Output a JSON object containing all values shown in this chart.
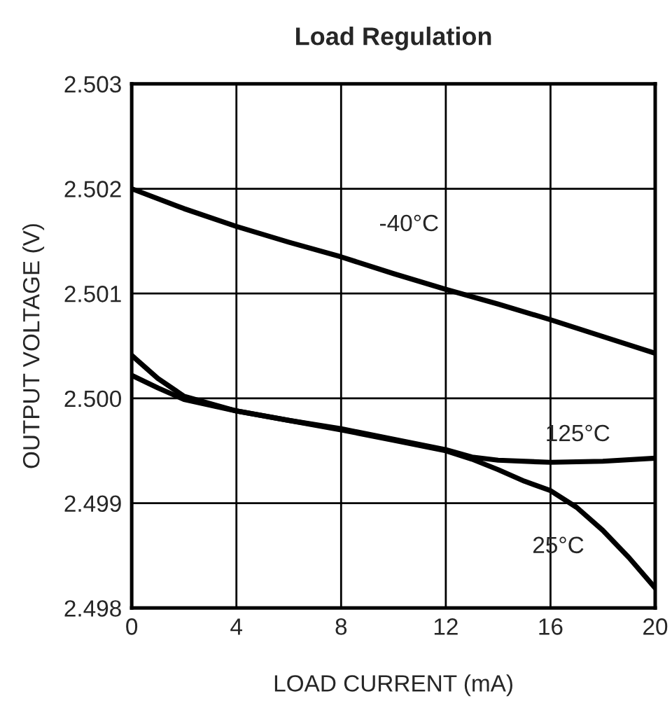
{
  "chart_data": {
    "type": "line",
    "title": "Load Regulation",
    "xlabel": "LOAD CURRENT (mA)",
    "ylabel": "OUTPUT VOLTAGE (V)",
    "series": [
      {
        "name": "-40°C",
        "color": "#000000",
        "x": [
          0,
          2,
          4,
          6,
          8,
          10,
          12,
          14,
          16,
          18,
          20
        ],
        "values": [
          2.502,
          2.50181,
          2.50164,
          2.50149,
          2.50135,
          2.50119,
          2.50104,
          2.5009,
          2.50075,
          2.50059,
          2.50043
        ]
      },
      {
        "name": "125°C",
        "color": "#000000",
        "x": [
          0,
          1,
          2,
          4,
          6,
          8,
          10,
          12,
          13,
          14,
          16,
          18,
          20
        ],
        "values": [
          2.50022,
          2.5001,
          2.49999,
          2.49988,
          2.49979,
          2.49971,
          2.49961,
          2.49951,
          2.49944,
          2.49941,
          2.49939,
          2.4994,
          2.49943
        ]
      },
      {
        "name": "25°C",
        "color": "#000000",
        "x": [
          0,
          1,
          2,
          4,
          6,
          8,
          10,
          12,
          13,
          14,
          15,
          16,
          17,
          18,
          19,
          20
        ],
        "values": [
          2.50041,
          2.50019,
          2.50002,
          2.49988,
          2.49979,
          2.4997,
          2.4996,
          2.4995,
          2.49942,
          2.49932,
          2.49921,
          2.49912,
          2.49896,
          2.49874,
          2.49848,
          2.49819
        ]
      }
    ],
    "xlim": [
      0,
      20
    ],
    "xticks": [
      0,
      4,
      8,
      12,
      16,
      20
    ],
    "ylim": [
      2.498,
      2.503
    ],
    "yticks": [
      2.498,
      2.499,
      {
        "value": 2.5,
        "label": "2.500"
      },
      2.501,
      2.502,
      2.503
    ],
    "grid": true,
    "marker": "none",
    "line_style": "solid"
  }
}
